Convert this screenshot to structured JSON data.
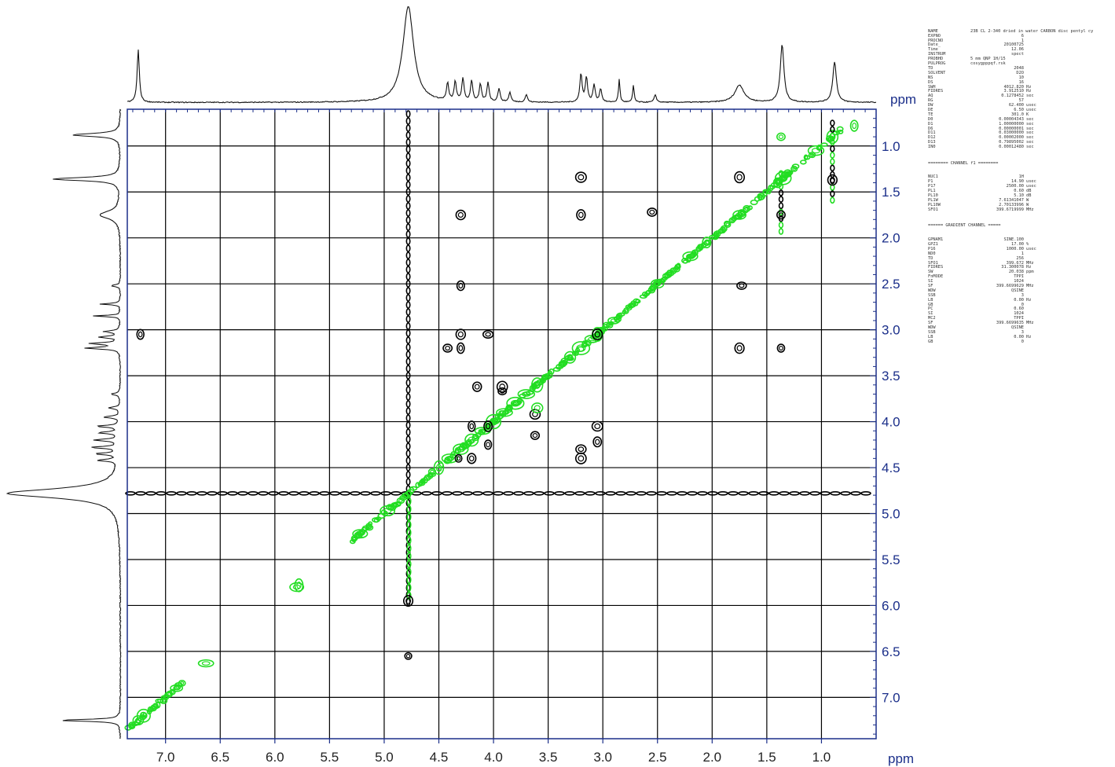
{
  "chart_data": {
    "type": "heatmap",
    "subtype": "2D NMR COSY contour plot with projections",
    "xlabel": "ppm",
    "ylabel": "ppm",
    "xlim": [
      7.35,
      0.5
    ],
    "ylim": [
      7.45,
      0.6
    ],
    "x_ticks": [
      7.0,
      6.5,
      6.0,
      5.5,
      5.0,
      4.5,
      4.0,
      3.5,
      3.0,
      2.5,
      2.0,
      1.5,
      1.0
    ],
    "x_tick_labels": [
      "7.0",
      "6.5",
      "6.0",
      "5.5",
      "5.0",
      "4.5",
      "4.0",
      "3.5",
      "3.0",
      "2.5",
      "2.0",
      "1.5",
      "1.0"
    ],
    "y_ticks": [
      1.0,
      1.5,
      2.0,
      2.5,
      3.0,
      3.5,
      4.0,
      4.5,
      5.0,
      5.5,
      6.0,
      6.5,
      7.0
    ],
    "y_tick_labels": [
      "1.0",
      "1.5",
      "2.0",
      "2.5",
      "3.0",
      "3.5",
      "4.0",
      "4.5",
      "5.0",
      "5.5",
      "6.0",
      "6.5",
      "7.0"
    ],
    "grid": true,
    "colors": {
      "positive": "#000000",
      "negative": "#22dd22",
      "frame": "#1b2f8a",
      "grid": "#000000"
    },
    "solvent_line_ppm": 4.78,
    "projection_peaks": [
      {
        "ppm": 7.25,
        "h": 0.55,
        "w": 0.012
      },
      {
        "ppm": 4.78,
        "h": 1.0,
        "w": 0.06
      },
      {
        "ppm": 4.42,
        "h": 0.18,
        "w": 0.012
      },
      {
        "ppm": 4.35,
        "h": 0.2,
        "w": 0.012
      },
      {
        "ppm": 4.28,
        "h": 0.24,
        "w": 0.012
      },
      {
        "ppm": 4.2,
        "h": 0.22,
        "w": 0.012
      },
      {
        "ppm": 4.12,
        "h": 0.18,
        "w": 0.012
      },
      {
        "ppm": 4.05,
        "h": 0.2,
        "w": 0.012
      },
      {
        "ppm": 3.95,
        "h": 0.14,
        "w": 0.012
      },
      {
        "ppm": 3.85,
        "h": 0.1,
        "w": 0.012
      },
      {
        "ppm": 3.7,
        "h": 0.08,
        "w": 0.012
      },
      {
        "ppm": 3.2,
        "h": 0.3,
        "w": 0.012
      },
      {
        "ppm": 3.15,
        "h": 0.26,
        "w": 0.012
      },
      {
        "ppm": 3.08,
        "h": 0.18,
        "w": 0.012
      },
      {
        "ppm": 3.02,
        "h": 0.14,
        "w": 0.012
      },
      {
        "ppm": 2.85,
        "h": 0.24,
        "w": 0.008
      },
      {
        "ppm": 2.72,
        "h": 0.18,
        "w": 0.008
      },
      {
        "ppm": 2.52,
        "h": 0.08,
        "w": 0.012
      },
      {
        "ppm": 1.75,
        "h": 0.18,
        "w": 0.05
      },
      {
        "ppm": 1.36,
        "h": 0.6,
        "w": 0.02
      },
      {
        "ppm": 0.88,
        "h": 0.42,
        "w": 0.02
      }
    ],
    "diagonal_peaks_ppm": [
      7.25,
      7.2,
      6.9,
      6.63,
      5.8,
      5.78,
      5.22,
      4.97,
      4.5,
      4.4,
      4.3,
      4.2,
      4.1,
      4.0,
      3.9,
      3.8,
      3.7,
      3.6,
      3.3,
      3.2,
      3.1,
      3.05,
      2.9,
      2.5,
      2.2,
      2.05,
      1.75,
      1.4,
      1.35,
      1.05,
      0.9
    ],
    "diagonal_range_ppm": [
      7.35,
      0.8
    ],
    "cross_peaks": [
      {
        "x": 0.9,
        "y": 1.37,
        "sign": "pos"
      },
      {
        "x": 1.37,
        "y": 0.9,
        "sign": "neg"
      },
      {
        "x": 1.75,
        "y": 1.34,
        "sign": "pos"
      },
      {
        "x": 1.37,
        "y": 1.75,
        "sign": "pos"
      },
      {
        "x": 3.2,
        "y": 1.34,
        "sign": "pos"
      },
      {
        "x": 1.37,
        "y": 3.2,
        "sign": "pos"
      },
      {
        "x": 3.2,
        "y": 1.75,
        "sign": "pos"
      },
      {
        "x": 1.75,
        "y": 3.2,
        "sign": "pos"
      },
      {
        "x": 4.3,
        "y": 1.75,
        "sign": "pos"
      },
      {
        "x": 2.55,
        "y": 1.72,
        "sign": "pos"
      },
      {
        "x": 1.73,
        "y": 2.52,
        "sign": "pos"
      },
      {
        "x": 4.3,
        "y": 2.52,
        "sign": "pos"
      },
      {
        "x": 7.23,
        "y": 3.05,
        "sign": "pos"
      },
      {
        "x": 4.3,
        "y": 3.05,
        "sign": "pos"
      },
      {
        "x": 4.05,
        "y": 3.05,
        "sign": "pos"
      },
      {
        "x": 4.42,
        "y": 3.2,
        "sign": "pos"
      },
      {
        "x": 4.3,
        "y": 3.2,
        "sign": "pos"
      },
      {
        "x": 3.05,
        "y": 3.05,
        "sign": "pos"
      },
      {
        "x": 4.15,
        "y": 3.62,
        "sign": "pos"
      },
      {
        "x": 3.92,
        "y": 3.62,
        "sign": "pos"
      },
      {
        "x": 3.92,
        "y": 3.67,
        "sign": "pos"
      },
      {
        "x": 3.62,
        "y": 3.92,
        "sign": "pos"
      },
      {
        "x": 3.62,
        "y": 4.15,
        "sign": "pos"
      },
      {
        "x": 4.2,
        "y": 4.05,
        "sign": "pos"
      },
      {
        "x": 4.05,
        "y": 4.05,
        "sign": "pos"
      },
      {
        "x": 4.05,
        "y": 4.25,
        "sign": "pos"
      },
      {
        "x": 4.32,
        "y": 4.4,
        "sign": "pos"
      },
      {
        "x": 4.2,
        "y": 4.4,
        "sign": "pos"
      },
      {
        "x": 3.2,
        "y": 4.3,
        "sign": "pos"
      },
      {
        "x": 3.05,
        "y": 4.05,
        "sign": "pos"
      },
      {
        "x": 3.05,
        "y": 4.22,
        "sign": "pos"
      },
      {
        "x": 3.2,
        "y": 4.4,
        "sign": "pos"
      },
      {
        "x": 4.78,
        "y": 5.95,
        "sign": "pos"
      },
      {
        "x": 4.78,
        "y": 6.55,
        "sign": "pos"
      },
      {
        "x": 3.6,
        "y": 3.85,
        "sign": "neg"
      },
      {
        "x": 0.7,
        "y": 0.78,
        "sign": "neg"
      }
    ]
  },
  "params": {
    "header": [
      {
        "k": "NAME",
        "v": "23B CL 2-340 dried in water CARBON disc pentyl cy",
        "wide": true
      },
      {
        "k": "EXPNO",
        "v": "6"
      },
      {
        "k": "PROCNO",
        "v": "1"
      },
      {
        "k": "Date_",
        "v": "20100725"
      },
      {
        "k": "Time",
        "v": "12.06"
      },
      {
        "k": "INSTRUM",
        "v": "spect"
      },
      {
        "k": "PROBHD",
        "v": "5 mm QNP 1H/15",
        "wide": true
      },
      {
        "k": "PULPROG",
        "v": "cosygpppqf.rsk",
        "wide": true
      },
      {
        "k": "TD",
        "v": "2048"
      },
      {
        "k": "SOLVENT",
        "v": "D2O"
      },
      {
        "k": "NS",
        "v": "10"
      },
      {
        "k": "DS",
        "v": "16"
      },
      {
        "k": "SWH",
        "v": "4012.820",
        "u": "Hz"
      },
      {
        "k": "FIDRES",
        "v": "3.912510",
        "u": "Hz"
      },
      {
        "k": "AQ",
        "v": "0.1278452",
        "u": "sec"
      },
      {
        "k": "RG",
        "v": "57"
      },
      {
        "k": "DW",
        "v": "62.400",
        "u": "usec"
      },
      {
        "k": "DE",
        "v": "6.50",
        "u": "usec"
      },
      {
        "k": "TE",
        "v": "301.0",
        "u": "K"
      },
      {
        "k": "D0",
        "v": "0.00004343",
        "u": "sec"
      },
      {
        "k": "D1",
        "v": "1.00000000",
        "u": "sec"
      },
      {
        "k": "D6",
        "v": "0.00000001",
        "u": "sec"
      },
      {
        "k": "D11",
        "v": "0.03000000",
        "u": "sec"
      },
      {
        "k": "D12",
        "v": "0.00002000",
        "u": "sec"
      },
      {
        "k": "D13",
        "v": "0.79895002",
        "u": "sec"
      },
      {
        "k": "IN0",
        "v": "0.00012480",
        "u": "sec"
      }
    ],
    "channel_title": "======== CHANNEL f1 ========",
    "channel": [
      {
        "k": "NUC1",
        "v": "1H"
      },
      {
        "k": "P1",
        "v": "14.90",
        "u": "usec"
      },
      {
        "k": "P17",
        "v": "2500.00",
        "u": "usec"
      },
      {
        "k": "PL1",
        "v": "0.60",
        "u": "dB"
      },
      {
        "k": "PL10",
        "v": "5.10",
        "u": "dB"
      },
      {
        "k": "PL1W",
        "v": "7.61341047",
        "u": "W"
      },
      {
        "k": "PL10W",
        "v": "2.70133996",
        "u": "W"
      },
      {
        "k": "SFO1",
        "v": "399.6719999",
        "u": "MHz"
      }
    ],
    "gradient_title": "====== GRADIENT CHANNEL =====",
    "gradient": [
      {
        "k": "GPNAM1",
        "v": "SINE.100"
      },
      {
        "k": "GPZ1",
        "v": "17.00",
        "u": "%"
      },
      {
        "k": "P16",
        "v": "1000.00",
        "u": "usec"
      },
      {
        "k": "ND0",
        "v": "1"
      },
      {
        "k": "TD",
        "v": "256"
      },
      {
        "k": "SFO1",
        "v": "399.672",
        "u": "MHz"
      },
      {
        "k": "FIDRES",
        "v": "31.300078",
        "u": "Hz"
      },
      {
        "k": "SW",
        "v": "20.038",
        "u": "ppm"
      },
      {
        "k": "FnMODE",
        "v": "TPPI"
      },
      {
        "k": "SI",
        "v": "1024"
      },
      {
        "k": "SF",
        "v": "399.6699629",
        "u": "MHz"
      },
      {
        "k": "WDW",
        "v": "QSINE"
      },
      {
        "k": "SSB",
        "v": "3"
      },
      {
        "k": "LB",
        "v": "0.00",
        "u": "Hz"
      },
      {
        "k": "GB",
        "v": "0"
      },
      {
        "k": "PC",
        "v": "0.60"
      },
      {
        "k": "SI",
        "v": "1024"
      },
      {
        "k": "MC2",
        "v": "TPPI"
      },
      {
        "k": "SF",
        "v": "399.6699635",
        "u": "MHz"
      },
      {
        "k": "WDW",
        "v": "QSINE"
      },
      {
        "k": "SSB",
        "v": "3"
      },
      {
        "k": "LB",
        "v": "0.00",
        "u": "Hz"
      },
      {
        "k": "GB",
        "v": "0"
      }
    ]
  }
}
